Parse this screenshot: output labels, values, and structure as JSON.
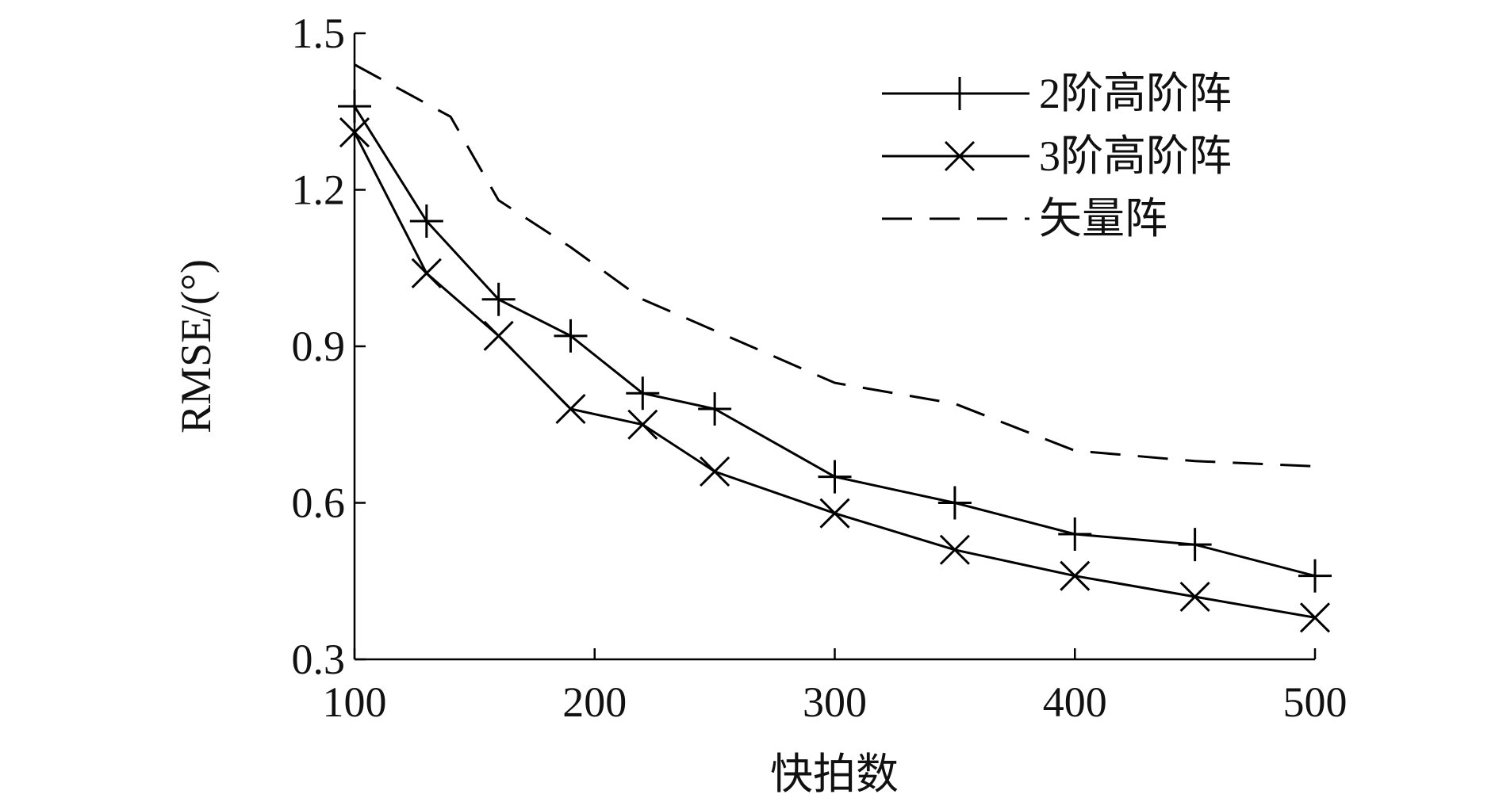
{
  "chart_data": {
    "type": "line",
    "title": "",
    "xlabel": "快拍数",
    "ylabel": "RMSE/(°)",
    "xlim": [
      100,
      500
    ],
    "ylim": [
      0.3,
      1.5
    ],
    "xticks": [
      100,
      200,
      300,
      400,
      500
    ],
    "yticks": [
      0.3,
      0.6,
      0.9,
      1.2,
      1.5
    ],
    "xtick_labels": [
      "100",
      "200",
      "300",
      "400",
      "500"
    ],
    "ytick_labels": [
      "0.3",
      "0.6",
      "0.9",
      "1.2",
      "1.5"
    ],
    "grid": false,
    "legend_position": "top-right",
    "series": [
      {
        "name": "2阶高阶阵",
        "marker": "plus",
        "style": "solid",
        "x": [
          100,
          130,
          160,
          190,
          220,
          250,
          300,
          350,
          400,
          450,
          500
        ],
        "y": [
          1.36,
          1.14,
          0.99,
          0.92,
          0.81,
          0.78,
          0.65,
          0.6,
          0.54,
          0.52,
          0.46
        ]
      },
      {
        "name": "3阶高阶阵",
        "marker": "x",
        "style": "solid",
        "x": [
          100,
          130,
          160,
          190,
          220,
          250,
          300,
          350,
          400,
          450,
          500
        ],
        "y": [
          1.31,
          1.04,
          0.92,
          0.78,
          0.75,
          0.66,
          0.58,
          0.51,
          0.46,
          0.42,
          0.38
        ]
      },
      {
        "name": "矢量阵",
        "marker": "none",
        "style": "dashed",
        "x": [
          100,
          140,
          160,
          190,
          220,
          250,
          300,
          350,
          400,
          450,
          500
        ],
        "y": [
          1.44,
          1.34,
          1.18,
          1.09,
          0.99,
          0.93,
          0.83,
          0.79,
          0.7,
          0.68,
          0.67
        ]
      }
    ]
  }
}
